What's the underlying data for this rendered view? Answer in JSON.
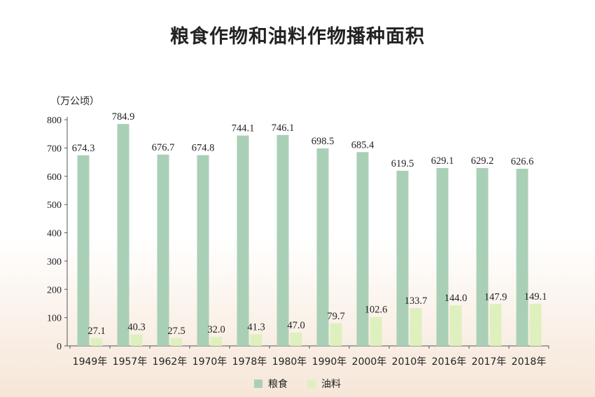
{
  "title": "粮食作物和油料作物播种面积",
  "unit": "（万公顷）",
  "colors": {
    "grain": "#a9d0b6",
    "oil": "#dff0bf",
    "axis": "#555555",
    "text": "#222222"
  },
  "chart_data": {
    "type": "bar",
    "title": "粮食作物和油料作物播种面积",
    "ylabel": "（万公顷）",
    "xlabel": "",
    "ylim": [
      0,
      800
    ],
    "yticks": [
      0,
      100,
      200,
      300,
      400,
      500,
      600,
      700,
      800
    ],
    "grid": false,
    "legend_position": "bottom",
    "categories": [
      "1949年",
      "1957年",
      "1962年",
      "1970年",
      "1978年",
      "1980年",
      "1990年",
      "2000年",
      "2010年",
      "2016年",
      "2017年",
      "2018年"
    ],
    "series": [
      {
        "name": "粮食",
        "color": "#a9d0b6",
        "values": [
          674.3,
          784.9,
          676.7,
          674.8,
          744.1,
          746.1,
          698.5,
          685.4,
          619.5,
          629.1,
          629.2,
          626.6
        ]
      },
      {
        "name": "油料",
        "color": "#dff0bf",
        "values": [
          27.1,
          40.3,
          27.5,
          32.0,
          41.3,
          47.0,
          79.7,
          102.6,
          133.7,
          144.0,
          147.9,
          149.1
        ]
      }
    ]
  }
}
